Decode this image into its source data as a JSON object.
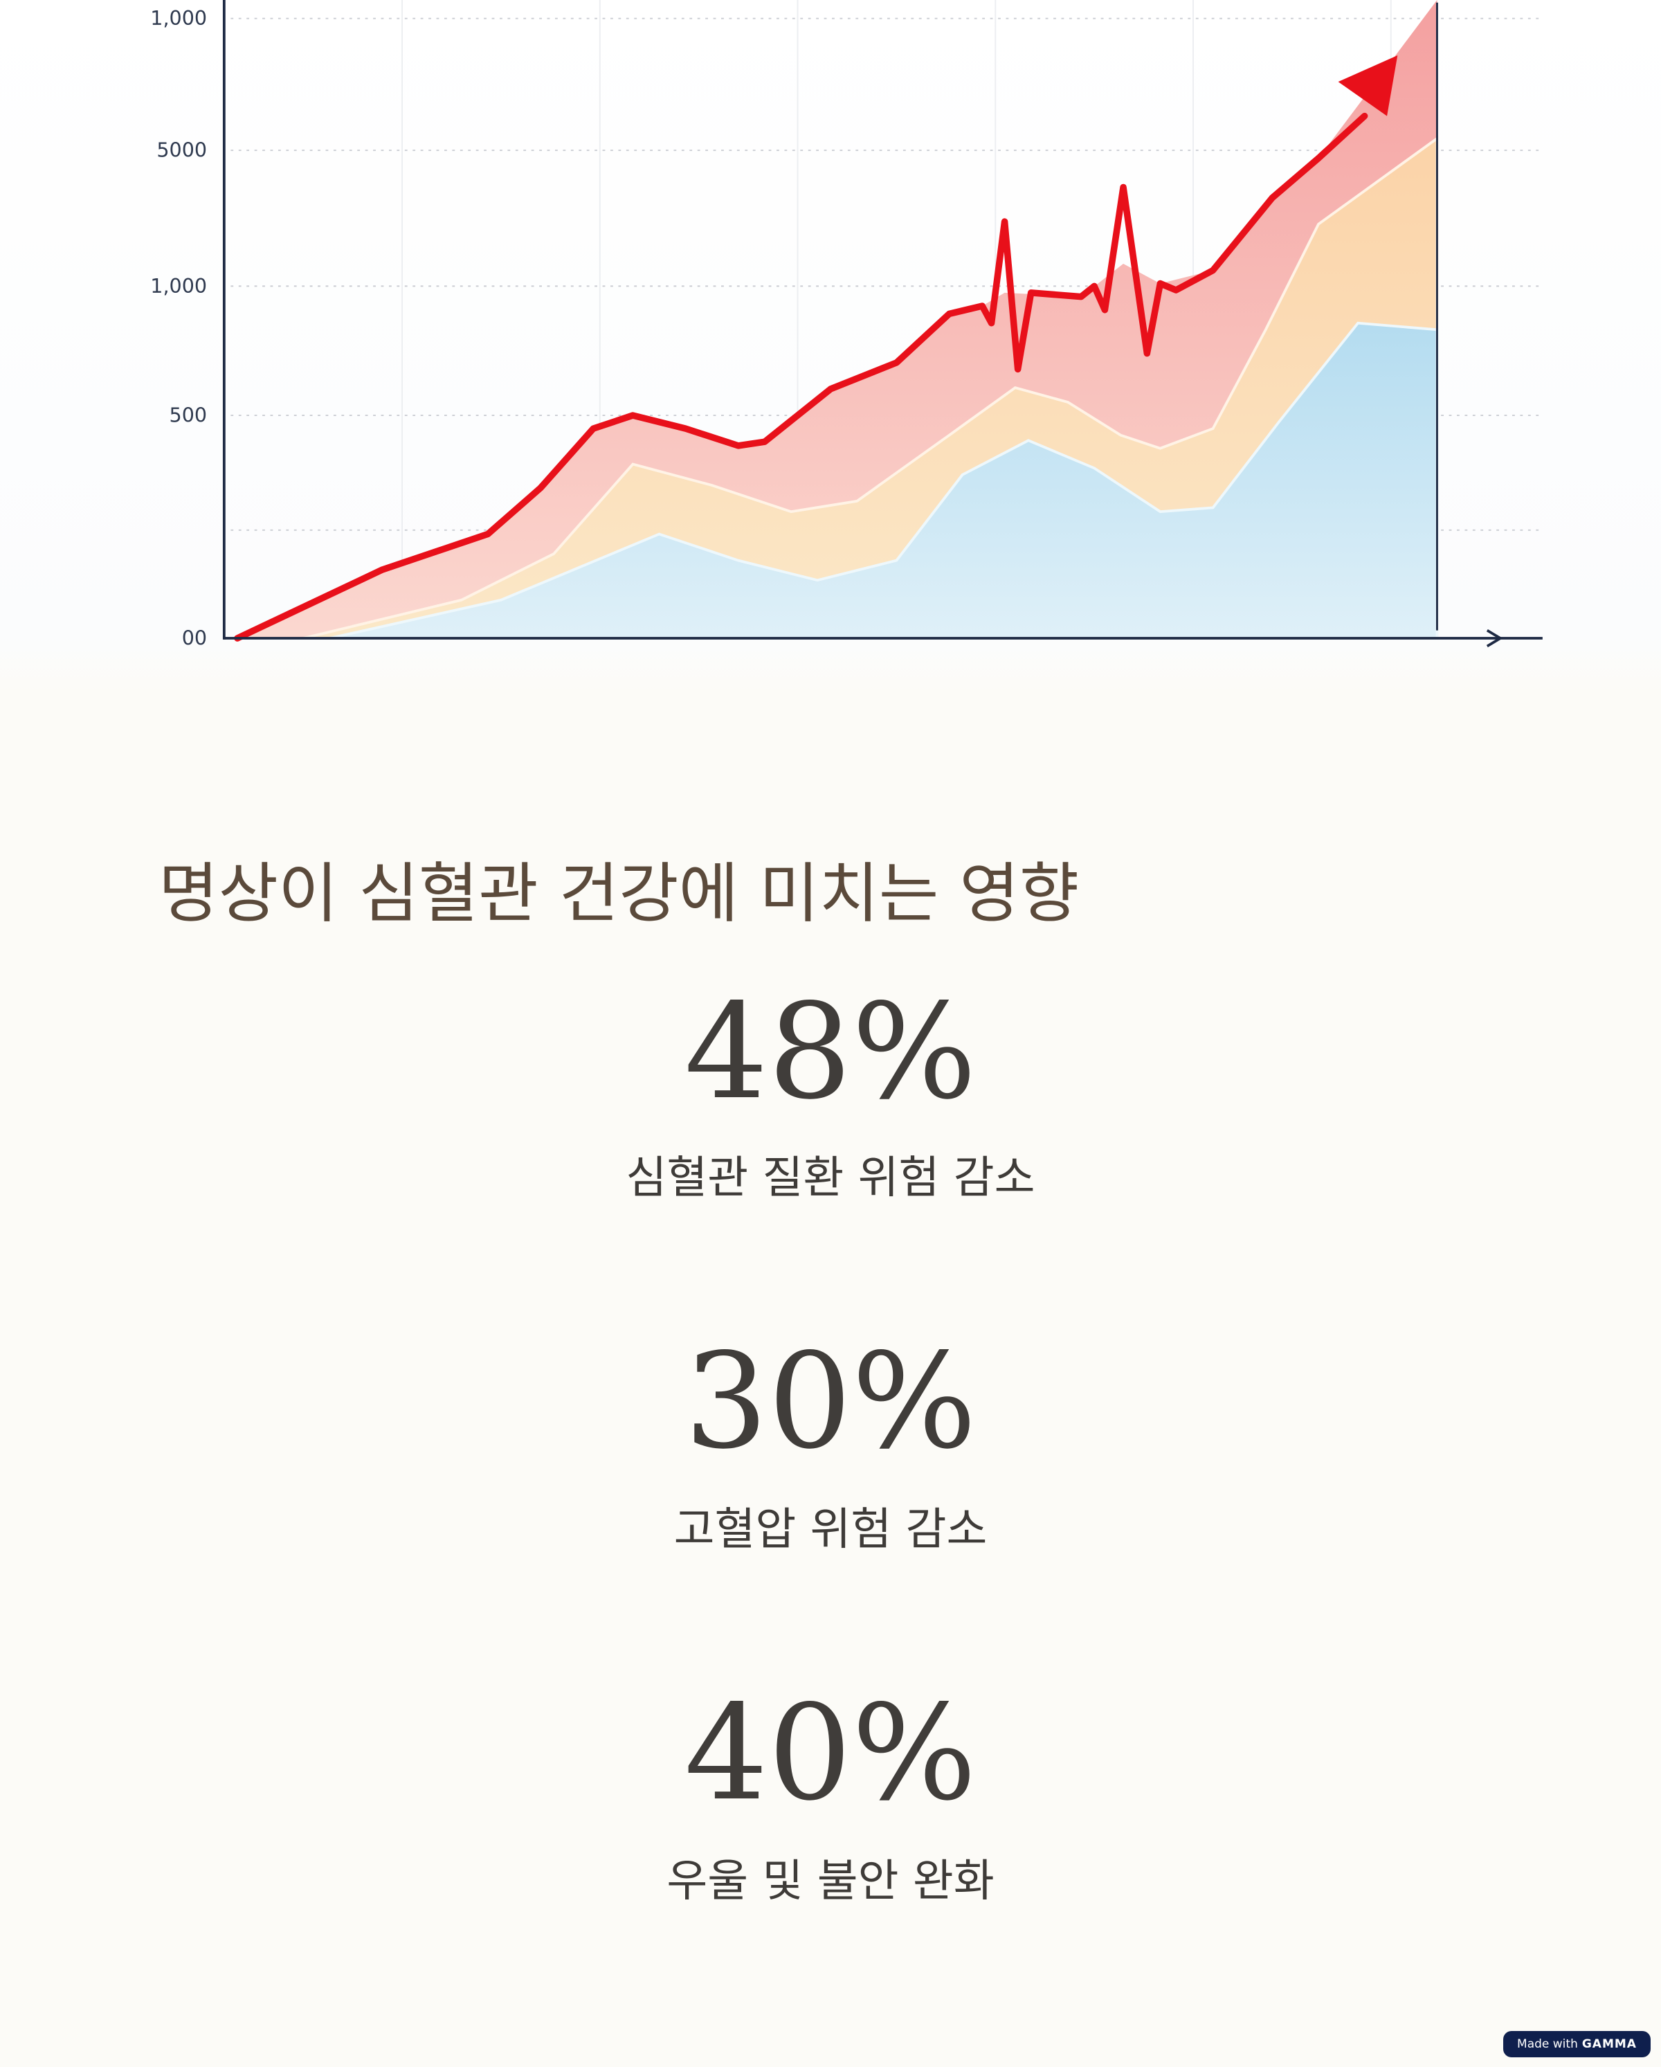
{
  "illustration": {
    "axis_labels": [
      "1,000",
      "5000",
      "1,000",
      "500",
      "00"
    ]
  },
  "title": "명상이 심혈관 건강에 미치는 영향",
  "stats": [
    {
      "value": "48%",
      "label": "심혈관 질환 위험 감소"
    },
    {
      "value": "30%",
      "label": "고혈압 위험 감소"
    },
    {
      "value": "40%",
      "label": "우울 및 불안 완화"
    }
  ],
  "badge": {
    "prefix": "Made with",
    "brand": "GAMMA"
  }
}
